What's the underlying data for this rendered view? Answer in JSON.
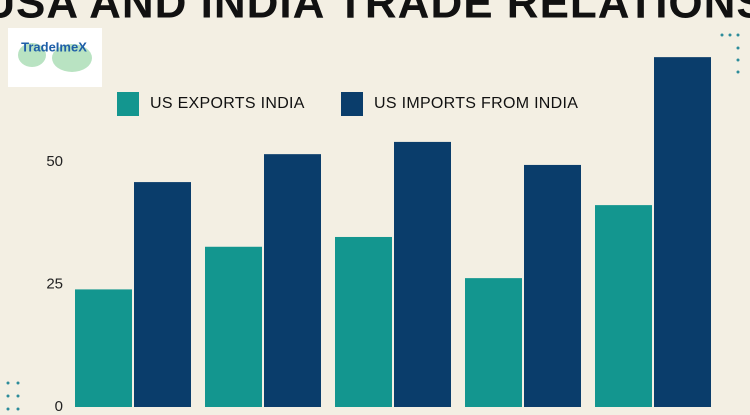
{
  "logo": {
    "text": "TradeImeX"
  },
  "chart_data": {
    "type": "bar",
    "title": "USA AND INDIA TRADE RELATIONS",
    "categories": [
      null,
      null,
      null,
      null,
      null
    ],
    "series": [
      {
        "name": "US EXPORTS INDIA",
        "color": "#13968f",
        "values": [
          24,
          32.7,
          34.7,
          26.3,
          41.2
        ]
      },
      {
        "name": "US IMPORTS FROM INDIA",
        "color": "#0a3d6b",
        "values": [
          45.9,
          51.6,
          54.1,
          49.4,
          71.4
        ]
      }
    ],
    "ylim": [
      0,
      75
    ],
    "yticks": [
      0,
      25,
      50
    ],
    "grid": false
  }
}
